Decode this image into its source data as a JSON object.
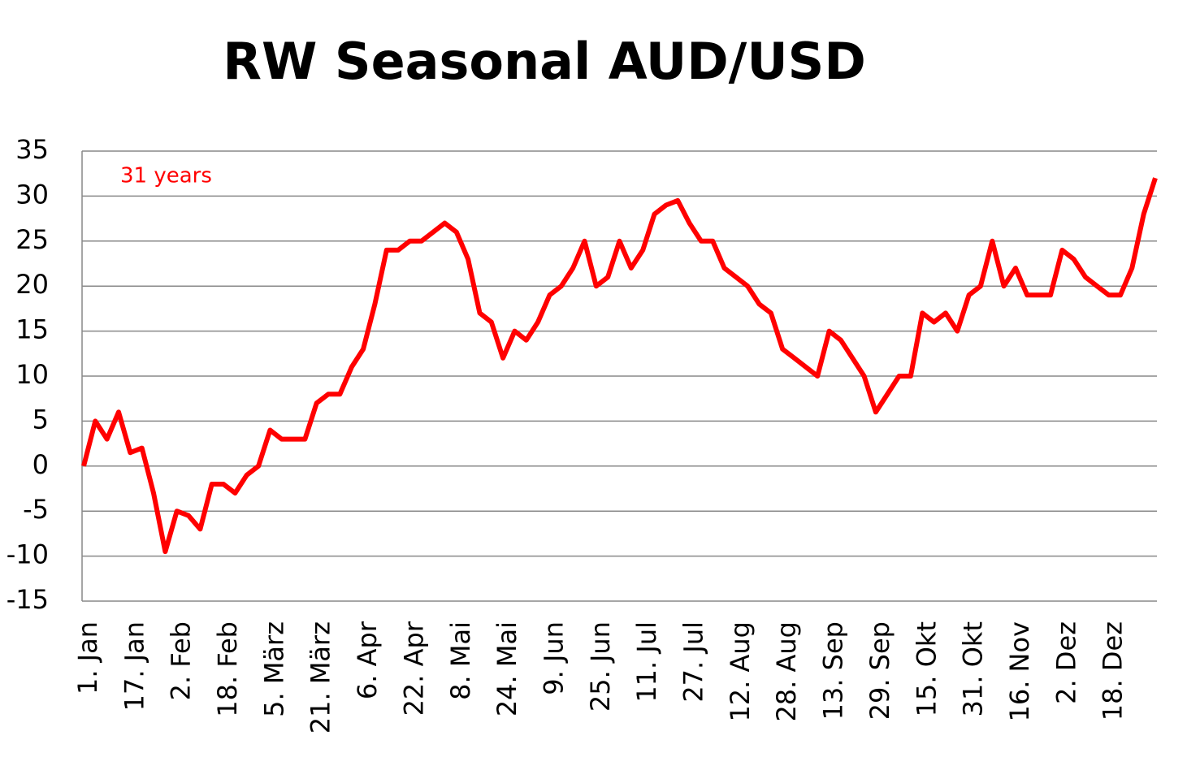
{
  "chart_data": {
    "type": "line",
    "title": "RW Seasonal AUD/USD",
    "annotation": "31 years",
    "categories": [
      "1. Jan",
      null,
      null,
      null,
      "17. Jan",
      null,
      null,
      null,
      "2. Feb",
      null,
      null,
      null,
      "18. Feb",
      null,
      null,
      null,
      "5. März",
      null,
      null,
      null,
      "21. März",
      null,
      null,
      null,
      "6. Apr",
      null,
      null,
      null,
      "22. Apr",
      null,
      null,
      null,
      "8. Mai",
      null,
      null,
      null,
      "24. Mai",
      null,
      null,
      null,
      "9. Jun",
      null,
      null,
      null,
      "25. Jun",
      null,
      null,
      null,
      "11. Jul",
      null,
      null,
      null,
      "27. Jul",
      null,
      null,
      null,
      "12. Aug",
      null,
      null,
      null,
      "28. Aug",
      null,
      null,
      null,
      "13. Sep",
      null,
      null,
      null,
      "29. Sep",
      null,
      null,
      null,
      "15. Okt",
      null,
      null,
      null,
      "31. Okt",
      null,
      null,
      null,
      "16. Nov",
      null,
      null,
      null,
      "2. Dez",
      null,
      null,
      null,
      "18. Dez",
      null,
      null,
      null,
      null
    ],
    "series": [
      {
        "color": "#ff0000",
        "values": [
          0,
          5,
          3,
          6,
          1.5,
          2,
          -3,
          -9.5,
          -5,
          -5.5,
          -7,
          -2,
          -2,
          -3,
          -1,
          0,
          4,
          3,
          3,
          3,
          7,
          8,
          8,
          11,
          13,
          18,
          24,
          24,
          25,
          25,
          26,
          27,
          26,
          23,
          17,
          16,
          12,
          15,
          14,
          16,
          19,
          20,
          22,
          25,
          20,
          21,
          25,
          22,
          24,
          28,
          29,
          29.5,
          27,
          25,
          25,
          22,
          21,
          20,
          18,
          17,
          13,
          12,
          11,
          10,
          15,
          14,
          12,
          10,
          6,
          8,
          10,
          10,
          17,
          16,
          17,
          15,
          19,
          20,
          25,
          20,
          22,
          19,
          19,
          19,
          24,
          23,
          21,
          20,
          19,
          19,
          22,
          28,
          32
        ]
      }
    ],
    "ylim": [
      -15,
      35
    ],
    "yticks": [
      -15,
      -10,
      -5,
      0,
      5,
      10,
      15,
      20,
      25,
      30,
      35
    ],
    "grid": true
  }
}
